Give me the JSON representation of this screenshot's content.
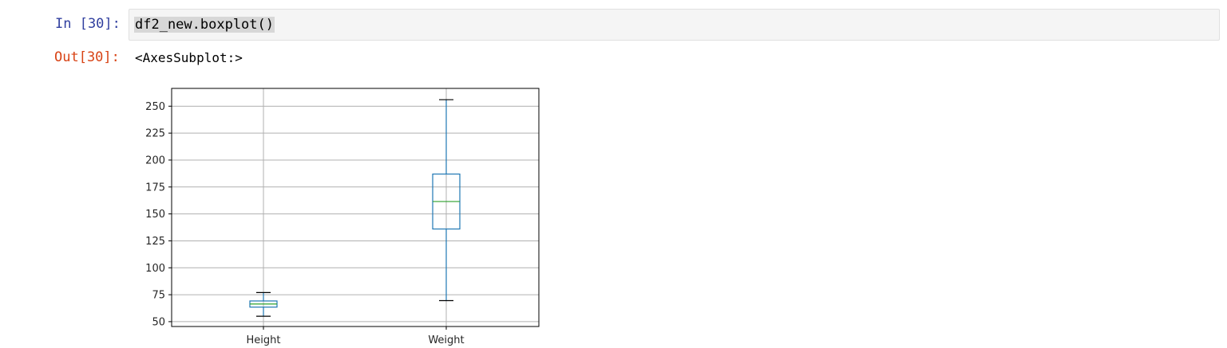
{
  "cell": {
    "in_prompt": "In [30]:",
    "code": "df2_new.boxplot()",
    "out_prompt": "Out[30]:",
    "output_text": "<AxesSubplot:>"
  },
  "colors": {
    "box": "#1f77b4",
    "median": "#2ca02c",
    "whisker_cap": "#000000",
    "grid": "#b0b0b0"
  },
  "chart_data": {
    "type": "boxplot",
    "categories": [
      "Height",
      "Weight"
    ],
    "series": [
      {
        "name": "Height",
        "whisker_low": 55,
        "q1": 63.5,
        "median": 66.4,
        "q3": 69.2,
        "whisker_high": 77
      },
      {
        "name": "Weight",
        "whisker_low": 69.5,
        "q1": 136,
        "median": 161.5,
        "q3": 187,
        "whisker_high": 256
      }
    ],
    "yticks": [
      50,
      75,
      100,
      125,
      150,
      175,
      200,
      225,
      250
    ],
    "ylim": [
      45.5,
      266.5
    ],
    "grid": true,
    "title": "",
    "xlabel": "",
    "ylabel": ""
  }
}
